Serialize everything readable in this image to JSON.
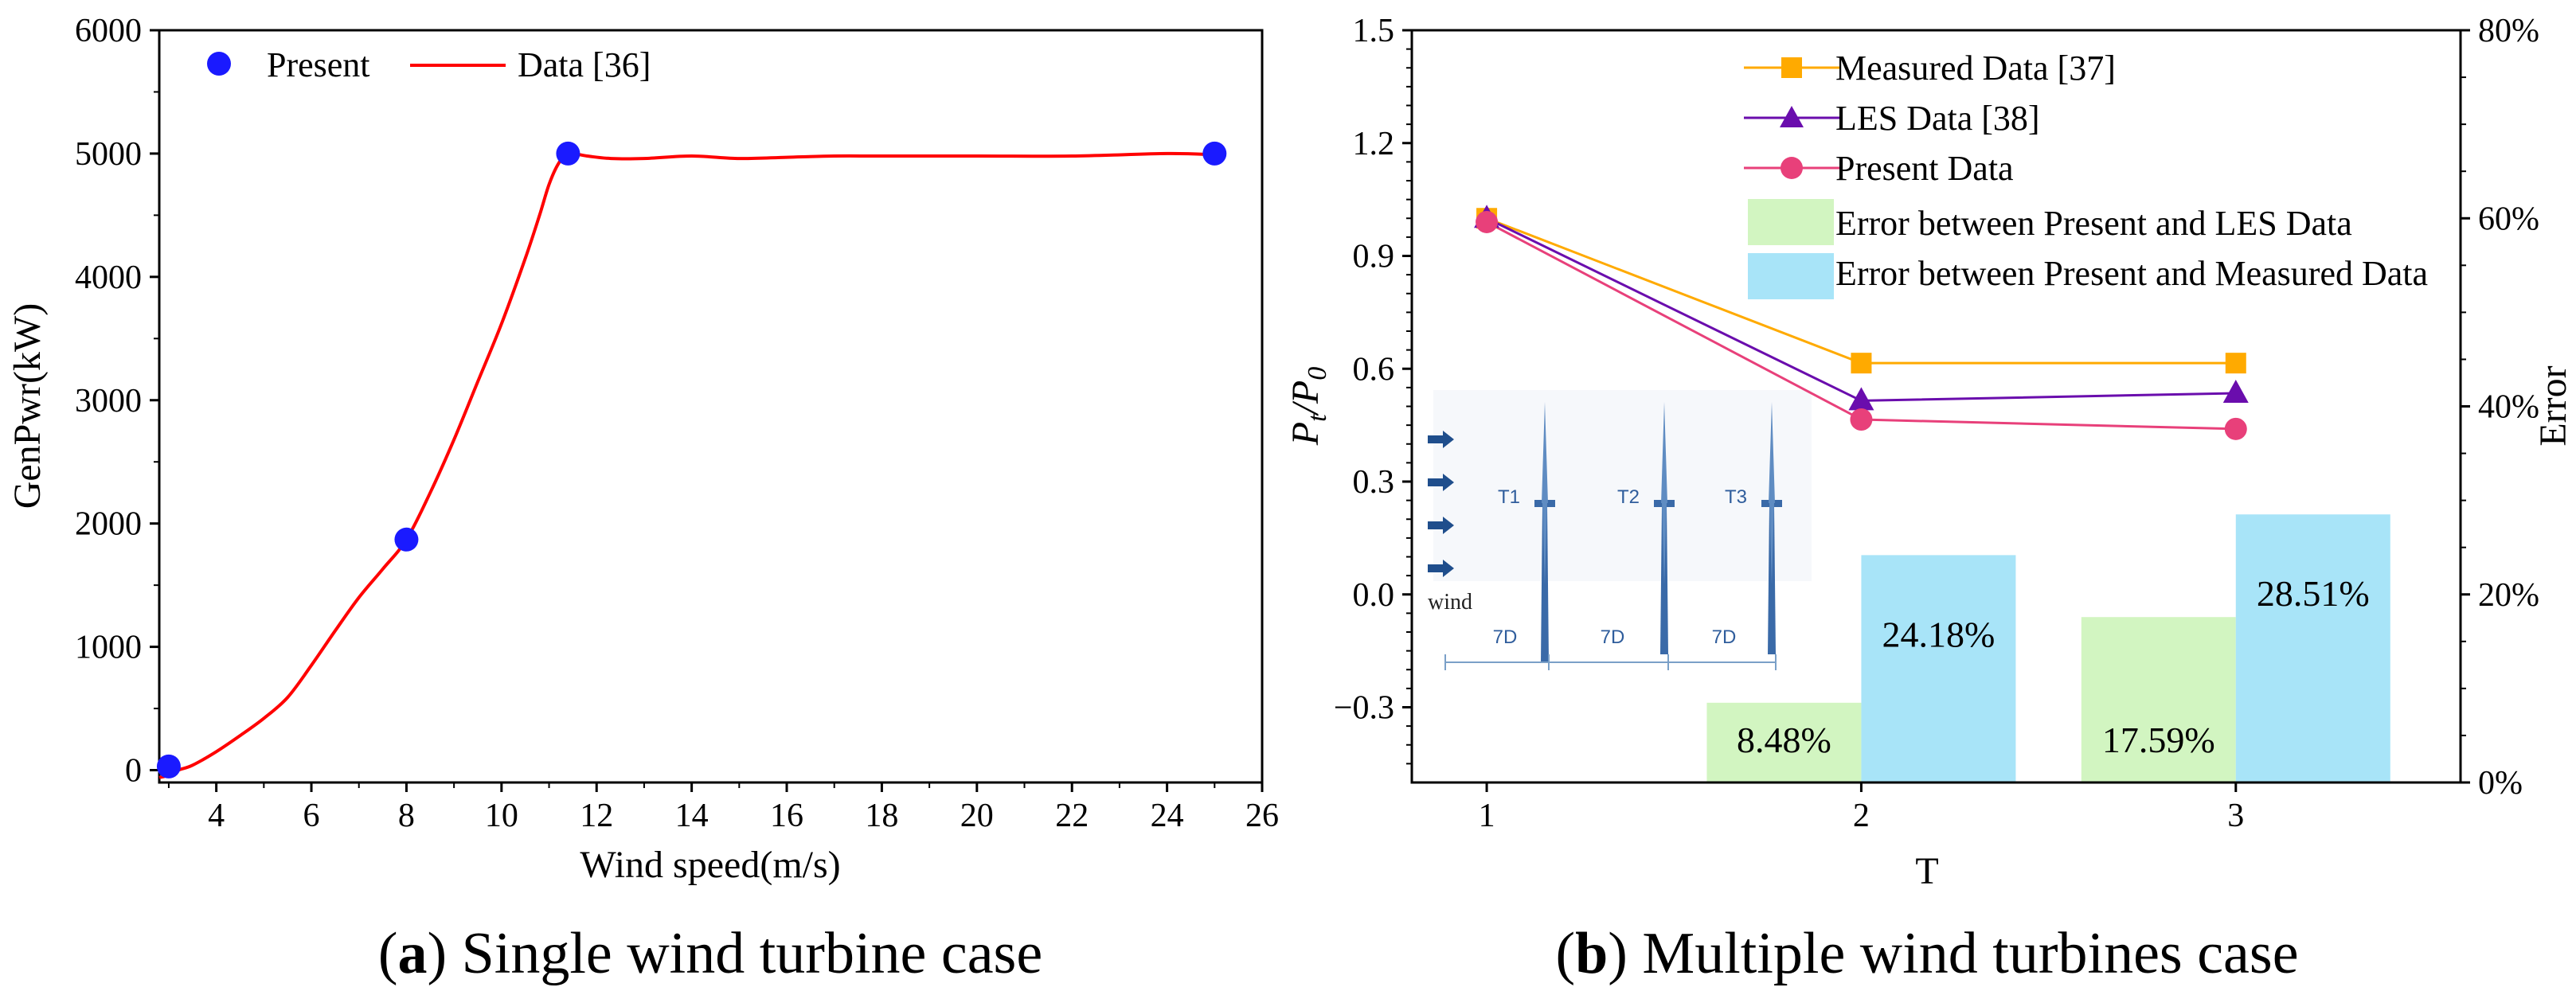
{
  "colors": {
    "present_blue": "#1a1aff",
    "data36_red": "#ff0000",
    "measured": "#ffaa00",
    "les": "#6a0dad",
    "present_pink": "#e8407a",
    "err_les": "#d2f5c1",
    "err_measured": "#a8e4f8",
    "schematic": "#3a6aa8"
  },
  "panel_a": {
    "caption_letter": "a",
    "caption_text": " Single wind turbine case"
  },
  "panel_b": {
    "caption_letter": "b",
    "caption_text": " Multiple wind turbines case"
  },
  "schematic": {
    "turbines": [
      "T1",
      "T2",
      "T3"
    ],
    "spacings": [
      "7D",
      "7D",
      "7D"
    ],
    "wind_label": "wind"
  },
  "chart_data": [
    {
      "type": "scatter",
      "title": "",
      "xlabel": "Wind speed(m/s)",
      "ylabel": "GenPwr(kW)",
      "xlim": [
        2.8,
        26
      ],
      "ylim": [
        -100,
        6000
      ],
      "xticks": [
        4,
        6,
        8,
        10,
        12,
        14,
        16,
        18,
        20,
        22,
        24,
        26
      ],
      "yticks": [
        0,
        1000,
        2000,
        3000,
        4000,
        5000,
        6000
      ],
      "legend": {
        "position": "top-left"
      },
      "series": [
        {
          "name": "Present",
          "mark": "circle",
          "x": [
            3,
            8,
            11.4,
            25
          ],
          "y": [
            30,
            1870,
            5000,
            5000
          ]
        },
        {
          "name": "Data [36]",
          "mark": "line",
          "x": [
            2.8,
            3,
            3.2,
            3.5,
            4,
            4.5,
            5,
            5.5,
            6,
            6.5,
            7,
            7.5,
            8,
            8.5,
            9,
            9.5,
            10,
            10.5,
            10.8,
            11,
            11.2,
            11.4,
            11.8,
            12.3,
            13,
            14,
            15,
            16,
            17,
            18,
            20,
            22,
            24,
            25
          ],
          "y": [
            -60,
            -40,
            0,
            40,
            150,
            280,
            420,
            590,
            850,
            1130,
            1400,
            1630,
            1870,
            2250,
            2680,
            3150,
            3620,
            4150,
            4500,
            4750,
            4920,
            5000,
            4980,
            4960,
            4960,
            4980,
            4960,
            4970,
            4980,
            4980,
            4980,
            4980,
            5000,
            4990
          ]
        }
      ]
    },
    {
      "type": "line",
      "title": "",
      "xlabel": "T",
      "ylabel": "P_t/P_0",
      "ylabel_main": "P",
      "ylabel_sub1": "t",
      "ylabel_sub2": "0",
      "y2label": "Error",
      "categories": [
        1,
        2,
        3
      ],
      "xticks": [
        "1",
        "2",
        "3"
      ],
      "ylim": [
        -0.5,
        1.5
      ],
      "yticks": [
        "−0.3",
        "0.0",
        "0.3",
        "0.6",
        "0.9",
        "1.2",
        "1.5"
      ],
      "ytick_values": [
        -0.3,
        0,
        0.3,
        0.6,
        0.9,
        1.2,
        1.5
      ],
      "y2lim": [
        0,
        0.8
      ],
      "y2ticks": [
        "0%",
        "20%",
        "40%",
        "60%",
        "80%"
      ],
      "y2tick_values": [
        0,
        0.2,
        0.4,
        0.6,
        0.8
      ],
      "legend": {
        "position": "top"
      },
      "series": [
        {
          "name": "Measured Data [37]",
          "mark": "square",
          "values": [
            1.0,
            0.615,
            0.615
          ]
        },
        {
          "name": "LES Data [38]",
          "mark": "triangle",
          "values": [
            1.0,
            0.515,
            0.535
          ]
        },
        {
          "name": "Present Data",
          "mark": "circle",
          "values": [
            0.99,
            0.465,
            0.44
          ]
        }
      ],
      "bars": [
        {
          "name": "Error between Present and LES Data",
          "axis": "y2",
          "values": [
            null,
            0.0848,
            0.1759
          ],
          "labels": [
            "",
            "8.48%",
            "17.59%"
          ]
        },
        {
          "name": "Error between Present and Measured Data",
          "axis": "y2",
          "values": [
            null,
            0.2418,
            0.2851
          ],
          "labels": [
            "",
            "24.18%",
            "28.51%"
          ]
        }
      ]
    }
  ]
}
